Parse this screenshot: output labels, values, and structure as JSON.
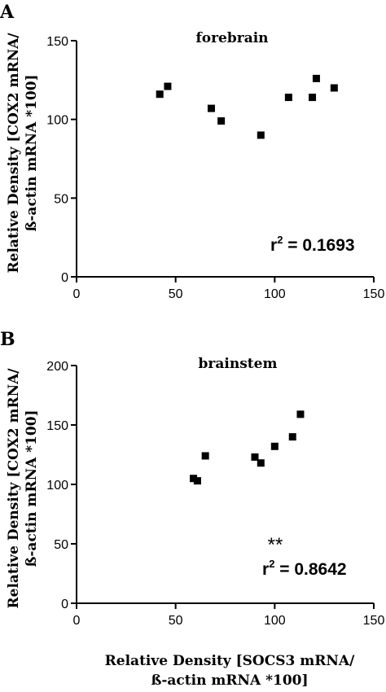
{
  "figure": {
    "shared_xlabel_line1": "Relative Density [SOCS3 mRNA/",
    "shared_xlabel_line2": "ß-actin mRNA *100]"
  },
  "panels": [
    {
      "panel_label": "A",
      "ylabel_line1": "Relative Density [COX2 mRNA/",
      "ylabel_line2": "ß-actin mRNA *100]",
      "r2_prefix": "r",
      "r2_sup": "2",
      "r2_value": " = 0.1693",
      "significance": ""
    },
    {
      "panel_label": "B",
      "ylabel_line1": "Relative Density [COX2 mRNA/",
      "ylabel_line2": "ß-actin mRNA *100]",
      "r2_prefix": "r",
      "r2_sup": "2",
      "r2_value": " = 0.8642",
      "significance": "**"
    }
  ],
  "chart_data": [
    {
      "type": "scatter",
      "title": "forebrain",
      "xlim": [
        0,
        150
      ],
      "ylim": [
        0,
        150
      ],
      "xticks": [
        0,
        50,
        100,
        150
      ],
      "yticks": [
        0,
        50,
        100,
        150
      ],
      "grid": false,
      "color": "#000000",
      "points": [
        {
          "x": 42,
          "y": 116
        },
        {
          "x": 46,
          "y": 121
        },
        {
          "x": 68,
          "y": 107
        },
        {
          "x": 73,
          "y": 99
        },
        {
          "x": 93,
          "y": 90
        },
        {
          "x": 107,
          "y": 114
        },
        {
          "x": 119,
          "y": 114
        },
        {
          "x": 121,
          "y": 126
        },
        {
          "x": 130,
          "y": 120
        }
      ]
    },
    {
      "type": "scatter",
      "title": "brainstem",
      "xlim": [
        0,
        150
      ],
      "ylim": [
        0,
        200
      ],
      "xticks": [
        0,
        50,
        100,
        150
      ],
      "yticks": [
        0,
        50,
        100,
        150,
        200
      ],
      "grid": false,
      "color": "#000000",
      "points": [
        {
          "x": 59,
          "y": 105
        },
        {
          "x": 61,
          "y": 103
        },
        {
          "x": 65,
          "y": 124
        },
        {
          "x": 90,
          "y": 123
        },
        {
          "x": 93,
          "y": 118
        },
        {
          "x": 100,
          "y": 132
        },
        {
          "x": 109,
          "y": 140
        },
        {
          "x": 113,
          "y": 159
        }
      ]
    }
  ]
}
